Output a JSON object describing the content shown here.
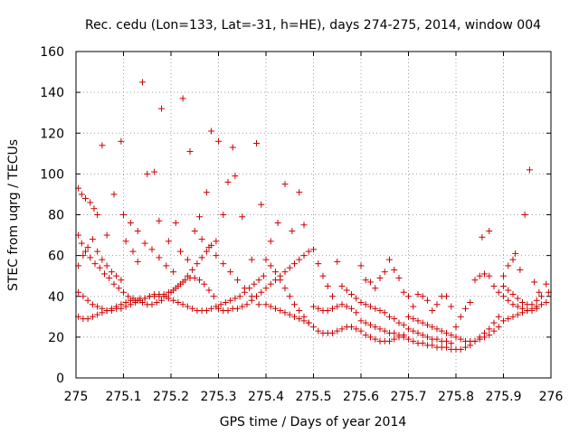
{
  "chart_data": {
    "type": "scatter",
    "title": "Rec. cedu (Lon=133, Lat=-31, h=HE), days 274-275, 2014, window 004",
    "xlabel": "GPS time / Days of year 2014",
    "ylabel": "STEC from uqrg / TECUs",
    "xlim": [
      275,
      276
    ],
    "ylim": [
      0,
      160
    ],
    "xticks": [
      "275",
      "275.1",
      "275.2",
      "275.3",
      "275.4",
      "275.5",
      "275.6",
      "275.7",
      "275.8",
      "275.9",
      "276"
    ],
    "yticks": [
      "0",
      "20",
      "40",
      "60",
      "80",
      "100",
      "120",
      "140",
      "160"
    ],
    "grid": true,
    "marker": "+",
    "color": "#cc0000",
    "points": [
      [
        275.005,
        93
      ],
      [
        275.012,
        90
      ],
      [
        275.02,
        88
      ],
      [
        275.03,
        86
      ],
      [
        275.038,
        83
      ],
      [
        275.045,
        80
      ],
      [
        275.055,
        114
      ],
      [
        275.065,
        70
      ],
      [
        275.08,
        90
      ],
      [
        275.095,
        116
      ],
      [
        275.105,
        67
      ],
      [
        275.12,
        62
      ],
      [
        275.13,
        57
      ],
      [
        275.14,
        145
      ],
      [
        275.15,
        100
      ],
      [
        275.165,
        101
      ],
      [
        275.175,
        77
      ],
      [
        275.18,
        132
      ],
      [
        275.195,
        67
      ],
      [
        275.21,
        76
      ],
      [
        275.225,
        137
      ],
      [
        275.24,
        111
      ],
      [
        275.26,
        79
      ],
      [
        275.275,
        91
      ],
      [
        275.285,
        121
      ],
      [
        275.3,
        116
      ],
      [
        275.31,
        80
      ],
      [
        275.32,
        96
      ],
      [
        275.33,
        113
      ],
      [
        275.335,
        99
      ],
      [
        275.35,
        79
      ],
      [
        275.37,
        58
      ],
      [
        275.38,
        115
      ],
      [
        275.39,
        85
      ],
      [
        275.41,
        67
      ],
      [
        275.425,
        76
      ],
      [
        275.44,
        95
      ],
      [
        275.455,
        72
      ],
      [
        275.47,
        91
      ],
      [
        275.48,
        75
      ],
      [
        275.005,
        70
      ],
      [
        275.012,
        66
      ],
      [
        275.02,
        62
      ],
      [
        275.03,
        59
      ],
      [
        275.04,
        56
      ],
      [
        275.05,
        54
      ],
      [
        275.06,
        51
      ],
      [
        275.07,
        49
      ],
      [
        275.08,
        46
      ],
      [
        275.09,
        44
      ],
      [
        275.1,
        42
      ],
      [
        275.11,
        40
      ],
      [
        275.12,
        39
      ],
      [
        275.13,
        38
      ],
      [
        275.14,
        37
      ],
      [
        275.15,
        36
      ],
      [
        275.16,
        36
      ],
      [
        275.17,
        37
      ],
      [
        275.18,
        38
      ],
      [
        275.19,
        40
      ],
      [
        275.2,
        42
      ],
      [
        275.21,
        44
      ],
      [
        275.22,
        46
      ],
      [
        275.23,
        48
      ],
      [
        275.24,
        49
      ],
      [
        275.25,
        49
      ],
      [
        275.26,
        48
      ],
      [
        275.27,
        46
      ],
      [
        275.28,
        43
      ],
      [
        275.29,
        40
      ],
      [
        275.005,
        42
      ],
      [
        275.015,
        40
      ],
      [
        275.025,
        38
      ],
      [
        275.035,
        36
      ],
      [
        275.045,
        35
      ],
      [
        275.055,
        34
      ],
      [
        275.065,
        33
      ],
      [
        275.075,
        33
      ],
      [
        275.085,
        34
      ],
      [
        275.095,
        34
      ],
      [
        275.105,
        35
      ],
      [
        275.115,
        36
      ],
      [
        275.125,
        37
      ],
      [
        275.135,
        38
      ],
      [
        275.145,
        39
      ],
      [
        275.155,
        40
      ],
      [
        275.165,
        41
      ],
      [
        275.175,
        41
      ],
      [
        275.185,
        40
      ],
      [
        275.195,
        39
      ],
      [
        275.205,
        38
      ],
      [
        275.215,
        37
      ],
      [
        275.225,
        36
      ],
      [
        275.235,
        35
      ],
      [
        275.245,
        34
      ],
      [
        275.255,
        33
      ],
      [
        275.265,
        33
      ],
      [
        275.275,
        33
      ],
      [
        275.285,
        34
      ],
      [
        275.295,
        35
      ],
      [
        275.305,
        36
      ],
      [
        275.315,
        37
      ],
      [
        275.325,
        38
      ],
      [
        275.335,
        39
      ],
      [
        275.345,
        40
      ],
      [
        275.355,
        42
      ],
      [
        275.365,
        44
      ],
      [
        275.375,
        46
      ],
      [
        275.385,
        48
      ],
      [
        275.395,
        50
      ],
      [
        275.005,
        30
      ],
      [
        275.015,
        29
      ],
      [
        275.025,
        29
      ],
      [
        275.035,
        30
      ],
      [
        275.045,
        31
      ],
      [
        275.055,
        32
      ],
      [
        275.065,
        33
      ],
      [
        275.075,
        34
      ],
      [
        275.085,
        35
      ],
      [
        275.095,
        36
      ],
      [
        275.105,
        37
      ],
      [
        275.115,
        38
      ],
      [
        275.125,
        38
      ],
      [
        275.135,
        39
      ],
      [
        275.145,
        39
      ],
      [
        275.155,
        40
      ],
      [
        275.165,
        40
      ],
      [
        275.175,
        40
      ],
      [
        275.185,
        41
      ],
      [
        275.195,
        42
      ],
      [
        275.205,
        43
      ],
      [
        275.215,
        45
      ],
      [
        275.225,
        47
      ],
      [
        275.235,
        50
      ],
      [
        275.245,
        53
      ],
      [
        275.255,
        56
      ],
      [
        275.265,
        59
      ],
      [
        275.275,
        62
      ],
      [
        275.285,
        65
      ],
      [
        275.295,
        67
      ],
      [
        275.005,
        55
      ],
      [
        275.015,
        60
      ],
      [
        275.025,
        64
      ],
      [
        275.035,
        68
      ],
      [
        275.045,
        62
      ],
      [
        275.055,
        58
      ],
      [
        275.065,
        55
      ],
      [
        275.075,
        52
      ],
      [
        275.085,
        50
      ],
      [
        275.095,
        48
      ],
      [
        275.1,
        80
      ],
      [
        275.115,
        76
      ],
      [
        275.13,
        72
      ],
      [
        275.145,
        66
      ],
      [
        275.16,
        63
      ],
      [
        275.175,
        59
      ],
      [
        275.19,
        55
      ],
      [
        275.205,
        52
      ],
      [
        275.22,
        62
      ],
      [
        275.235,
        58
      ],
      [
        275.25,
        72
      ],
      [
        275.265,
        68
      ],
      [
        275.28,
        64
      ],
      [
        275.295,
        60
      ],
      [
        275.31,
        56
      ],
      [
        275.325,
        52
      ],
      [
        275.34,
        48
      ],
      [
        275.355,
        44
      ],
      [
        275.37,
        40
      ],
      [
        275.385,
        36
      ],
      [
        275.3,
        34
      ],
      [
        275.31,
        33
      ],
      [
        275.32,
        33
      ],
      [
        275.33,
        34
      ],
      [
        275.34,
        34
      ],
      [
        275.35,
        35
      ],
      [
        275.36,
        36
      ],
      [
        275.37,
        38
      ],
      [
        275.38,
        40
      ],
      [
        275.39,
        42
      ],
      [
        275.4,
        44
      ],
      [
        275.41,
        46
      ],
      [
        275.42,
        48
      ],
      [
        275.43,
        50
      ],
      [
        275.44,
        52
      ],
      [
        275.45,
        54
      ],
      [
        275.46,
        56
      ],
      [
        275.47,
        58
      ],
      [
        275.48,
        60
      ],
      [
        275.49,
        62
      ],
      [
        275.4,
        58
      ],
      [
        275.41,
        55
      ],
      [
        275.42,
        52
      ],
      [
        275.43,
        48
      ],
      [
        275.44,
        44
      ],
      [
        275.45,
        40
      ],
      [
        275.46,
        36
      ],
      [
        275.47,
        33
      ],
      [
        275.48,
        30
      ],
      [
        275.49,
        27
      ],
      [
        275.5,
        25
      ],
      [
        275.51,
        23
      ],
      [
        275.52,
        22
      ],
      [
        275.53,
        22
      ],
      [
        275.54,
        22
      ],
      [
        275.55,
        23
      ],
      [
        275.56,
        24
      ],
      [
        275.57,
        25
      ],
      [
        275.58,
        25
      ],
      [
        275.59,
        24
      ],
      [
        275.6,
        23
      ],
      [
        275.61,
        21
      ],
      [
        275.62,
        20
      ],
      [
        275.63,
        19
      ],
      [
        275.64,
        18
      ],
      [
        275.65,
        18
      ],
      [
        275.66,
        18
      ],
      [
        275.67,
        19
      ],
      [
        275.68,
        20
      ],
      [
        275.69,
        21
      ],
      [
        275.4,
        36
      ],
      [
        275.41,
        35
      ],
      [
        275.42,
        34
      ],
      [
        275.43,
        33
      ],
      [
        275.44,
        32
      ],
      [
        275.45,
        31
      ],
      [
        275.46,
        30
      ],
      [
        275.47,
        29
      ],
      [
        275.48,
        28
      ],
      [
        275.49,
        27
      ],
      [
        275.5,
        35
      ],
      [
        275.51,
        34
      ],
      [
        275.52,
        33
      ],
      [
        275.53,
        33
      ],
      [
        275.54,
        34
      ],
      [
        275.55,
        35
      ],
      [
        275.56,
        36
      ],
      [
        275.57,
        35
      ],
      [
        275.58,
        34
      ],
      [
        275.59,
        32
      ],
      [
        275.5,
        63
      ],
      [
        275.51,
        56
      ],
      [
        275.52,
        50
      ],
      [
        275.53,
        45
      ],
      [
        275.54,
        40
      ],
      [
        275.55,
        57
      ],
      [
        275.56,
        45
      ],
      [
        275.57,
        43
      ],
      [
        275.58,
        41
      ],
      [
        275.59,
        39
      ],
      [
        275.6,
        55
      ],
      [
        275.61,
        48
      ],
      [
        275.62,
        47
      ],
      [
        275.63,
        44
      ],
      [
        275.64,
        49
      ],
      [
        275.65,
        52
      ],
      [
        275.66,
        58
      ],
      [
        275.67,
        53
      ],
      [
        275.68,
        49
      ],
      [
        275.69,
        42
      ],
      [
        275.6,
        37
      ],
      [
        275.61,
        36
      ],
      [
        275.62,
        35
      ],
      [
        275.63,
        34
      ],
      [
        275.64,
        33
      ],
      [
        275.65,
        32
      ],
      [
        275.66,
        30
      ],
      [
        275.67,
        29
      ],
      [
        275.68,
        27
      ],
      [
        275.69,
        26
      ],
      [
        275.6,
        28
      ],
      [
        275.61,
        27
      ],
      [
        275.62,
        26
      ],
      [
        275.63,
        25
      ],
      [
        275.64,
        24
      ],
      [
        275.65,
        23
      ],
      [
        275.66,
        22
      ],
      [
        275.67,
        22
      ],
      [
        275.68,
        21
      ],
      [
        275.69,
        20
      ],
      [
        275.7,
        19
      ],
      [
        275.71,
        18
      ],
      [
        275.72,
        17
      ],
      [
        275.73,
        17
      ],
      [
        275.74,
        16
      ],
      [
        275.75,
        16
      ],
      [
        275.76,
        15
      ],
      [
        275.77,
        15
      ],
      [
        275.78,
        15
      ],
      [
        275.79,
        14
      ],
      [
        275.8,
        14
      ],
      [
        275.81,
        14
      ],
      [
        275.82,
        15
      ],
      [
        275.83,
        16
      ],
      [
        275.84,
        18
      ],
      [
        275.85,
        20
      ],
      [
        275.86,
        22
      ],
      [
        275.87,
        24
      ],
      [
        275.88,
        27
      ],
      [
        275.89,
        30
      ],
      [
        275.7,
        40
      ],
      [
        275.71,
        35
      ],
      [
        275.72,
        41
      ],
      [
        275.73,
        40
      ],
      [
        275.74,
        38
      ],
      [
        275.75,
        33
      ],
      [
        275.76,
        36
      ],
      [
        275.77,
        40
      ],
      [
        275.78,
        40
      ],
      [
        275.79,
        35
      ],
      [
        275.7,
        30
      ],
      [
        275.71,
        29
      ],
      [
        275.72,
        28
      ],
      [
        275.73,
        27
      ],
      [
        275.74,
        26
      ],
      [
        275.75,
        25
      ],
      [
        275.76,
        24
      ],
      [
        275.77,
        23
      ],
      [
        275.78,
        22
      ],
      [
        275.79,
        21
      ],
      [
        275.7,
        24
      ],
      [
        275.71,
        23
      ],
      [
        275.72,
        22
      ],
      [
        275.73,
        21
      ],
      [
        275.74,
        20
      ],
      [
        275.75,
        19
      ],
      [
        275.76,
        19
      ],
      [
        275.77,
        18
      ],
      [
        275.78,
        18
      ],
      [
        275.79,
        17
      ],
      [
        275.8,
        25
      ],
      [
        275.81,
        30
      ],
      [
        275.82,
        34
      ],
      [
        275.83,
        37
      ],
      [
        275.84,
        48
      ],
      [
        275.85,
        50
      ],
      [
        275.86,
        51
      ],
      [
        275.87,
        50
      ],
      [
        275.88,
        45
      ],
      [
        275.89,
        42
      ],
      [
        275.8,
        20
      ],
      [
        275.81,
        19
      ],
      [
        275.82,
        18
      ],
      [
        275.83,
        18
      ],
      [
        275.84,
        18
      ],
      [
        275.85,
        19
      ],
      [
        275.86,
        20
      ],
      [
        275.87,
        21
      ],
      [
        275.88,
        23
      ],
      [
        275.89,
        25
      ],
      [
        275.855,
        69
      ],
      [
        275.87,
        72
      ],
      [
        275.9,
        40
      ],
      [
        275.91,
        38
      ],
      [
        275.92,
        36
      ],
      [
        275.93,
        35
      ],
      [
        275.94,
        34
      ],
      [
        275.95,
        33
      ],
      [
        275.96,
        33
      ],
      [
        275.97,
        34
      ],
      [
        275.9,
        28
      ],
      [
        275.91,
        29
      ],
      [
        275.92,
        30
      ],
      [
        275.93,
        31
      ],
      [
        275.94,
        32
      ],
      [
        275.95,
        33
      ],
      [
        275.96,
        34
      ],
      [
        275.97,
        35
      ],
      [
        275.98,
        36
      ],
      [
        275.99,
        37
      ],
      [
        275.9,
        50
      ],
      [
        275.91,
        55
      ],
      [
        275.92,
        58
      ],
      [
        275.925,
        61
      ],
      [
        275.935,
        53
      ],
      [
        275.945,
        80
      ],
      [
        275.955,
        102
      ],
      [
        275.965,
        47
      ],
      [
        275.975,
        42
      ],
      [
        275.99,
        46
      ],
      [
        275.9,
        45
      ],
      [
        275.91,
        43
      ],
      [
        275.92,
        41
      ],
      [
        275.93,
        39
      ],
      [
        275.94,
        37
      ],
      [
        275.95,
        36
      ],
      [
        275.96,
        36
      ],
      [
        275.97,
        38
      ],
      [
        275.98,
        40
      ],
      [
        275.995,
        42
      ]
    ]
  }
}
